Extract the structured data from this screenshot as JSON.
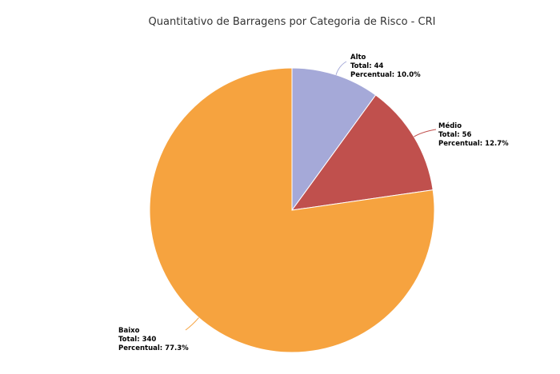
{
  "chart_data": {
    "type": "pie",
    "title": "Quantitativo de Barragens por Categoria de Risco - CRI",
    "categories": [
      "Alto",
      "Médio",
      "Baixo"
    ],
    "values": [
      44,
      56,
      340
    ],
    "value_labels": [
      "Total: 44",
      "Total: 56",
      "Total: 340"
    ],
    "percent_labels": [
      "Percentual: 10.0%",
      "Percentual: 12.7%",
      "Percentual: 77.3%"
    ],
    "colors": [
      "#a5a9d8",
      "#c0504d",
      "#f6a33f"
    ]
  }
}
